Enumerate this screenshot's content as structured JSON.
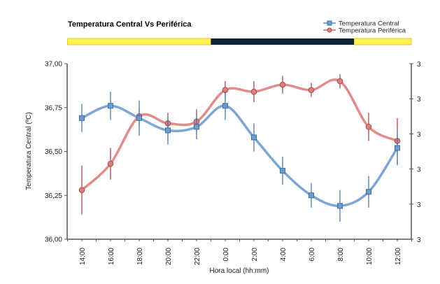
{
  "chart_data": {
    "type": "line",
    "title": "Temperatura Central Vs Periférica",
    "xlabel": "Hora local (hh:mm)",
    "ylabel": "Temperatura Central (ºC)",
    "ylim": [
      36.0,
      37.0
    ],
    "yticks": [
      "36,00",
      "36,25",
      "36,50",
      "36,75",
      "37,00"
    ],
    "right_yticks": [
      "3",
      "3",
      "3",
      "3",
      "3",
      "3"
    ],
    "categories": [
      "14:00",
      "16:00",
      "18:00",
      "20:00",
      "22:00",
      "0:00",
      "2:00",
      "4:00",
      "6:00",
      "8:00",
      "10:00",
      "12:00"
    ],
    "series": [
      {
        "name": "Temperatura  Central",
        "color": "#7ea6d4",
        "marker": "square",
        "values": [
          36.69,
          36.76,
          36.69,
          36.62,
          36.64,
          36.76,
          36.58,
          36.39,
          36.25,
          36.19,
          36.27,
          36.52
        ],
        "errors": [
          0.08,
          0.08,
          0.1,
          0.08,
          0.07,
          0.08,
          0.08,
          0.08,
          0.07,
          0.09,
          0.09,
          0.1
        ]
      },
      {
        "name": "Temperatura  Periférica",
        "color": "#e08c8c",
        "marker": "circle",
        "values": [
          36.28,
          36.43,
          36.7,
          36.66,
          36.67,
          36.85,
          36.84,
          36.88,
          36.85,
          36.9,
          36.64,
          36.56
        ],
        "errors": [
          0.14,
          0.09,
          0.05,
          0.06,
          0.07,
          0.05,
          0.06,
          0.05,
          0.04,
          0.04,
          0.08,
          0.13
        ]
      }
    ],
    "daynight_bar": [
      {
        "label": "day",
        "from_index": -0.5,
        "to_index": 4.5,
        "color": "#fff44f"
      },
      {
        "label": "night",
        "from_index": 4.5,
        "to_index": 9.5,
        "color": "#0c2438"
      },
      {
        "label": "day",
        "from_index": 9.5,
        "to_index": 11.5,
        "color": "#fff44f"
      }
    ],
    "legend_position": "top-right",
    "grid": false
  }
}
